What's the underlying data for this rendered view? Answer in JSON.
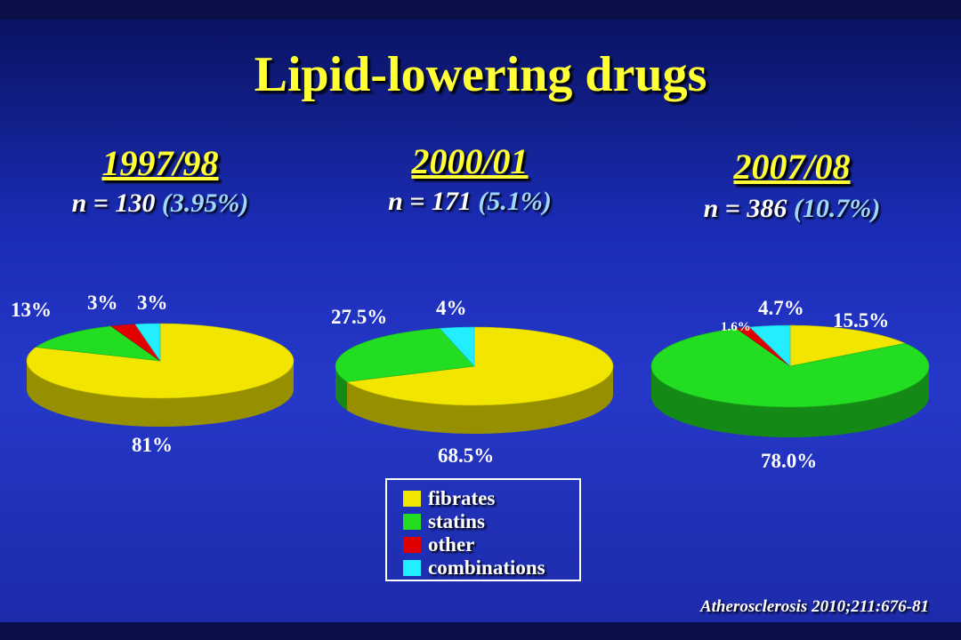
{
  "title": "Lipid-lowering drugs",
  "citation": "Atherosclerosis 2010;211:676-81",
  "colors": {
    "fibrates": "#f2e600",
    "statins": "#22dd22",
    "other": "#e00000",
    "combinations": "#22eeff"
  },
  "legend": [
    {
      "label": "fibrates",
      "color": "#f2e600"
    },
    {
      "label": "statins",
      "color": "#22dd22"
    },
    {
      "label": "other",
      "color": "#e00000"
    },
    {
      "label": "combinations",
      "color": "#22eeff"
    }
  ],
  "panels": [
    {
      "period": "1997/98",
      "n_text": "n = 130",
      "pct_text": "(3.95%)"
    },
    {
      "period": "2000/01",
      "n_text": "n = 171",
      "pct_text": "(5.1%)"
    },
    {
      "period": "2007/08",
      "n_text": "n = 386",
      "pct_text": "(10.7%)"
    }
  ],
  "chart_data": [
    {
      "type": "pie",
      "title": "1997/98",
      "categories": [
        "fibrates",
        "statins",
        "other",
        "combinations"
      ],
      "values": [
        81,
        13,
        3,
        3
      ],
      "labels": [
        "81%",
        "13%",
        "3%",
        "3%"
      ]
    },
    {
      "type": "pie",
      "title": "2000/01",
      "categories": [
        "fibrates",
        "statins",
        "other",
        "combinations"
      ],
      "values": [
        68.5,
        27.5,
        0,
        4
      ],
      "labels": [
        "68.5%",
        "27.5%",
        "",
        "4%"
      ]
    },
    {
      "type": "pie",
      "title": "2007/08",
      "categories": [
        "fibrates",
        "statins",
        "other",
        "combinations"
      ],
      "values": [
        15.5,
        78.0,
        1.6,
        4.7
      ],
      "labels": [
        "15.5%",
        "78.0%",
        "1.6%",
        "4.7%"
      ]
    }
  ]
}
